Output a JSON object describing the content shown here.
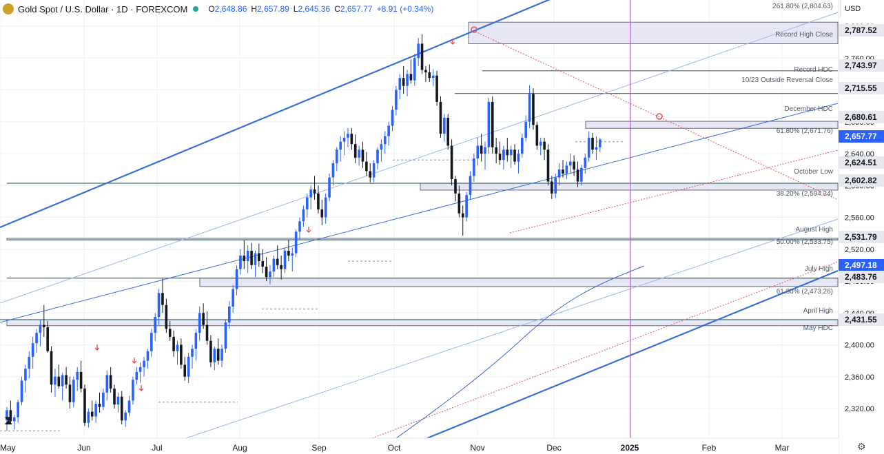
{
  "header": {
    "symbol": "Gold Spot / U.S. Dollar · 1D · FOREXCOM",
    "open_label": "O",
    "open": "2,648.86",
    "high_label": "H",
    "high": "2,657.89",
    "low_label": "L",
    "low": "2,645.36",
    "close_label": "C",
    "close": "2,657.77",
    "change": "+8.91 (+0.34%)"
  },
  "currency": "USD",
  "colors": {
    "up": "#2962ff",
    "down": "#131722",
    "channel": "#3a6fd8",
    "zone_fill": "#e6e6f5",
    "zone_border": "#6b6b78",
    "dashed_red": "#e0535b",
    "ma": "#3f62d4",
    "marker": "#e0535b",
    "vertical": "#c038e0",
    "label": "#555b66"
  },
  "chart_data": {
    "type": "candlestick",
    "title": "Gold Spot / U.S. Dollar",
    "interval": "1D",
    "ylim": [
      2290,
      2830
    ],
    "x_months": [
      "May",
      "Jun",
      "Jul",
      "Aug",
      "Sep",
      "Oct",
      "Nov",
      "Dec",
      "2025",
      "Feb",
      "Mar"
    ],
    "y_ticks": [
      "2,320.00",
      "2,360.00",
      "2,400.00",
      "2,440.00",
      "2,480.00",
      "2,520.00",
      "2,560.00",
      "2,600.00",
      "2,640.00",
      "2,680.00",
      "2,720.00",
      "2,760.00",
      "2,800.00"
    ],
    "last_price": "2,657.77",
    "ma_value": "2,497.18",
    "price_labels": [
      {
        "value": "2,787.52",
        "text": "Record High Close"
      },
      {
        "value": "2,743.97",
        "text": "Record HDC"
      },
      {
        "value": "2,715.55",
        "text": "10/23 Outside Reversal Close"
      },
      {
        "value": "2,680.61",
        "text": "December HDC"
      },
      {
        "value": "2,624.51",
        "text": ""
      },
      {
        "value": "2,602.82",
        "text": "October Low"
      },
      {
        "value": "2,531.79",
        "text": "August High"
      },
      {
        "value": "2,483.76",
        "text": "July High"
      },
      {
        "value": "2,431.55",
        "text": "April High"
      }
    ],
    "fib_labels": [
      {
        "value": 2804.63,
        "text": "261.80% (2,804.63)"
      },
      {
        "value": 2671.76,
        "text": "61.80% (2,671.76)"
      },
      {
        "value": 2594.24,
        "text": "38.20% (2,594.24)"
      },
      {
        "value": 2533.75,
        "text": "50.00% (2,533.75)"
      },
      {
        "value": 2473.26,
        "text": "61.80% (2,473.26)"
      },
      {
        "value": 2424.0,
        "text": "May HDC"
      }
    ],
    "zones": [
      {
        "from": 2778,
        "to": 2805
      },
      {
        "from": 2671.76,
        "to": 2680.61
      },
      {
        "from": 2594.24,
        "to": 2602.82
      },
      {
        "from": 2531.79,
        "to": 2533.75
      },
      {
        "from": 2473.26,
        "to": 2483.76
      },
      {
        "from": 2424.0,
        "to": 2431.55
      }
    ],
    "candles": [
      {
        "o": 2305,
        "h": 2322,
        "l": 2292,
        "c": 2318
      },
      {
        "o": 2318,
        "h": 2330,
        "l": 2300,
        "c": 2304
      },
      {
        "o": 2304,
        "h": 2312,
        "l": 2294,
        "c": 2309
      },
      {
        "o": 2309,
        "h": 2331,
        "l": 2302,
        "c": 2328
      },
      {
        "o": 2328,
        "h": 2360,
        "l": 2324,
        "c": 2355
      },
      {
        "o": 2355,
        "h": 2375,
        "l": 2340,
        "c": 2370
      },
      {
        "o": 2370,
        "h": 2392,
        "l": 2358,
        "c": 2385
      },
      {
        "o": 2385,
        "h": 2410,
        "l": 2370,
        "c": 2402
      },
      {
        "o": 2402,
        "h": 2420,
        "l": 2390,
        "c": 2415
      },
      {
        "o": 2415,
        "h": 2432,
        "l": 2398,
        "c": 2425
      },
      {
        "o": 2425,
        "h": 2450,
        "l": 2410,
        "c": 2422
      },
      {
        "o": 2422,
        "h": 2430,
        "l": 2390,
        "c": 2392
      },
      {
        "o": 2392,
        "h": 2398,
        "l": 2340,
        "c": 2350
      },
      {
        "o": 2350,
        "h": 2370,
        "l": 2335,
        "c": 2360
      },
      {
        "o": 2360,
        "h": 2375,
        "l": 2345,
        "c": 2348
      },
      {
        "o": 2348,
        "h": 2365,
        "l": 2330,
        "c": 2362
      },
      {
        "o": 2362,
        "h": 2372,
        "l": 2345,
        "c": 2350
      },
      {
        "o": 2350,
        "h": 2360,
        "l": 2320,
        "c": 2328
      },
      {
        "o": 2328,
        "h": 2360,
        "l": 2322,
        "c": 2356
      },
      {
        "o": 2356,
        "h": 2372,
        "l": 2342,
        "c": 2366
      },
      {
        "o": 2366,
        "h": 2380,
        "l": 2340,
        "c": 2345
      },
      {
        "o": 2345,
        "h": 2350,
        "l": 2298,
        "c": 2302
      },
      {
        "o": 2302,
        "h": 2320,
        "l": 2296,
        "c": 2316
      },
      {
        "o": 2316,
        "h": 2330,
        "l": 2305,
        "c": 2310
      },
      {
        "o": 2310,
        "h": 2330,
        "l": 2302,
        "c": 2326
      },
      {
        "o": 2326,
        "h": 2340,
        "l": 2315,
        "c": 2322
      },
      {
        "o": 2322,
        "h": 2345,
        "l": 2318,
        "c": 2340
      },
      {
        "o": 2340,
        "h": 2368,
        "l": 2330,
        "c": 2362
      },
      {
        "o": 2362,
        "h": 2372,
        "l": 2340,
        "c": 2345
      },
      {
        "o": 2345,
        "h": 2350,
        "l": 2320,
        "c": 2325
      },
      {
        "o": 2325,
        "h": 2340,
        "l": 2315,
        "c": 2335
      },
      {
        "o": 2335,
        "h": 2342,
        "l": 2300,
        "c": 2305
      },
      {
        "o": 2305,
        "h": 2318,
        "l": 2297,
        "c": 2315
      },
      {
        "o": 2315,
        "h": 2336,
        "l": 2310,
        "c": 2330
      },
      {
        "o": 2330,
        "h": 2360,
        "l": 2325,
        "c": 2356
      },
      {
        "o": 2356,
        "h": 2372,
        "l": 2350,
        "c": 2366
      },
      {
        "o": 2366,
        "h": 2378,
        "l": 2352,
        "c": 2372
      },
      {
        "o": 2372,
        "h": 2385,
        "l": 2360,
        "c": 2380
      },
      {
        "o": 2380,
        "h": 2395,
        "l": 2370,
        "c": 2392
      },
      {
        "o": 2392,
        "h": 2420,
        "l": 2385,
        "c": 2415
      },
      {
        "o": 2415,
        "h": 2440,
        "l": 2405,
        "c": 2435
      },
      {
        "o": 2435,
        "h": 2470,
        "l": 2425,
        "c": 2465
      },
      {
        "o": 2465,
        "h": 2483,
        "l": 2440,
        "c": 2450
      },
      {
        "o": 2450,
        "h": 2458,
        "l": 2415,
        "c": 2420
      },
      {
        "o": 2420,
        "h": 2430,
        "l": 2405,
        "c": 2410
      },
      {
        "o": 2410,
        "h": 2418,
        "l": 2385,
        "c": 2392
      },
      {
        "o": 2392,
        "h": 2405,
        "l": 2375,
        "c": 2400
      },
      {
        "o": 2400,
        "h": 2408,
        "l": 2370,
        "c": 2375
      },
      {
        "o": 2375,
        "h": 2385,
        "l": 2355,
        "c": 2360
      },
      {
        "o": 2360,
        "h": 2390,
        "l": 2352,
        "c": 2385
      },
      {
        "o": 2385,
        "h": 2400,
        "l": 2370,
        "c": 2395
      },
      {
        "o": 2395,
        "h": 2420,
        "l": 2380,
        "c": 2415
      },
      {
        "o": 2415,
        "h": 2448,
        "l": 2405,
        "c": 2440
      },
      {
        "o": 2440,
        "h": 2452,
        "l": 2420,
        "c": 2425
      },
      {
        "o": 2425,
        "h": 2442,
        "l": 2400,
        "c": 2405
      },
      {
        "o": 2405,
        "h": 2412,
        "l": 2372,
        "c": 2378
      },
      {
        "o": 2378,
        "h": 2398,
        "l": 2368,
        "c": 2395
      },
      {
        "o": 2395,
        "h": 2408,
        "l": 2375,
        "c": 2380
      },
      {
        "o": 2380,
        "h": 2400,
        "l": 2372,
        "c": 2395
      },
      {
        "o": 2395,
        "h": 2432,
        "l": 2390,
        "c": 2428
      },
      {
        "o": 2428,
        "h": 2455,
        "l": 2420,
        "c": 2448
      },
      {
        "o": 2448,
        "h": 2475,
        "l": 2440,
        "c": 2470
      },
      {
        "o": 2470,
        "h": 2500,
        "l": 2462,
        "c": 2495
      },
      {
        "o": 2495,
        "h": 2520,
        "l": 2488,
        "c": 2512
      },
      {
        "o": 2512,
        "h": 2531,
        "l": 2495,
        "c": 2505
      },
      {
        "o": 2505,
        "h": 2525,
        "l": 2490,
        "c": 2518
      },
      {
        "o": 2518,
        "h": 2528,
        "l": 2495,
        "c": 2500
      },
      {
        "o": 2500,
        "h": 2518,
        "l": 2485,
        "c": 2515
      },
      {
        "o": 2515,
        "h": 2527,
        "l": 2498,
        "c": 2505
      },
      {
        "o": 2505,
        "h": 2520,
        "l": 2490,
        "c": 2498
      },
      {
        "o": 2498,
        "h": 2510,
        "l": 2480,
        "c": 2485
      },
      {
        "o": 2485,
        "h": 2500,
        "l": 2476,
        "c": 2492
      },
      {
        "o": 2492,
        "h": 2512,
        "l": 2485,
        "c": 2508
      },
      {
        "o": 2508,
        "h": 2525,
        "l": 2495,
        "c": 2500
      },
      {
        "o": 2500,
        "h": 2512,
        "l": 2482,
        "c": 2495
      },
      {
        "o": 2495,
        "h": 2522,
        "l": 2490,
        "c": 2518
      },
      {
        "o": 2518,
        "h": 2532,
        "l": 2505,
        "c": 2512
      },
      {
        "o": 2512,
        "h": 2522,
        "l": 2492,
        "c": 2515
      },
      {
        "o": 2515,
        "h": 2545,
        "l": 2510,
        "c": 2542
      },
      {
        "o": 2542,
        "h": 2560,
        "l": 2532,
        "c": 2555
      },
      {
        "o": 2555,
        "h": 2575,
        "l": 2548,
        "c": 2570
      },
      {
        "o": 2570,
        "h": 2590,
        "l": 2560,
        "c": 2585
      },
      {
        "o": 2585,
        "h": 2600,
        "l": 2570,
        "c": 2595
      },
      {
        "o": 2595,
        "h": 2612,
        "l": 2582,
        "c": 2590
      },
      {
        "o": 2590,
        "h": 2600,
        "l": 2565,
        "c": 2570
      },
      {
        "o": 2570,
        "h": 2582,
        "l": 2550,
        "c": 2560
      },
      {
        "o": 2560,
        "h": 2590,
        "l": 2552,
        "c": 2585
      },
      {
        "o": 2585,
        "h": 2615,
        "l": 2580,
        "c": 2610
      },
      {
        "o": 2610,
        "h": 2632,
        "l": 2600,
        "c": 2628
      },
      {
        "o": 2628,
        "h": 2648,
        "l": 2618,
        "c": 2645
      },
      {
        "o": 2645,
        "h": 2662,
        "l": 2630,
        "c": 2655
      },
      {
        "o": 2655,
        "h": 2668,
        "l": 2638,
        "c": 2660
      },
      {
        "o": 2660,
        "h": 2672,
        "l": 2648,
        "c": 2665
      },
      {
        "o": 2665,
        "h": 2672,
        "l": 2645,
        "c": 2652
      },
      {
        "o": 2652,
        "h": 2664,
        "l": 2628,
        "c": 2635
      },
      {
        "o": 2635,
        "h": 2650,
        "l": 2625,
        "c": 2645
      },
      {
        "o": 2645,
        "h": 2655,
        "l": 2622,
        "c": 2630
      },
      {
        "o": 2630,
        "h": 2642,
        "l": 2612,
        "c": 2618
      },
      {
        "o": 2618,
        "h": 2628,
        "l": 2604,
        "c": 2610
      },
      {
        "o": 2610,
        "h": 2632,
        "l": 2604,
        "c": 2628
      },
      {
        "o": 2628,
        "h": 2648,
        "l": 2620,
        "c": 2645
      },
      {
        "o": 2645,
        "h": 2658,
        "l": 2630,
        "c": 2652
      },
      {
        "o": 2652,
        "h": 2668,
        "l": 2640,
        "c": 2662
      },
      {
        "o": 2662,
        "h": 2680,
        "l": 2650,
        "c": 2675
      },
      {
        "o": 2675,
        "h": 2700,
        "l": 2668,
        "c": 2695
      },
      {
        "o": 2695,
        "h": 2725,
        "l": 2688,
        "c": 2720
      },
      {
        "o": 2720,
        "h": 2740,
        "l": 2708,
        "c": 2735
      },
      {
        "o": 2735,
        "h": 2750,
        "l": 2715,
        "c": 2725
      },
      {
        "o": 2725,
        "h": 2745,
        "l": 2712,
        "c": 2740
      },
      {
        "o": 2740,
        "h": 2758,
        "l": 2728,
        "c": 2732
      },
      {
        "o": 2732,
        "h": 2765,
        "l": 2725,
        "c": 2760
      },
      {
        "o": 2760,
        "h": 2785,
        "l": 2750,
        "c": 2778
      },
      {
        "o": 2778,
        "h": 2790,
        "l": 2740,
        "c": 2745
      },
      {
        "o": 2745,
        "h": 2750,
        "l": 2730,
        "c": 2742
      },
      {
        "o": 2742,
        "h": 2752,
        "l": 2730,
        "c": 2735
      },
      {
        "o": 2735,
        "h": 2746,
        "l": 2725,
        "c": 2738
      },
      {
        "o": 2738,
        "h": 2744,
        "l": 2700,
        "c": 2705
      },
      {
        "o": 2705,
        "h": 2712,
        "l": 2660,
        "c": 2665
      },
      {
        "o": 2665,
        "h": 2690,
        "l": 2655,
        "c": 2685
      },
      {
        "o": 2685,
        "h": 2690,
        "l": 2645,
        "c": 2650
      },
      {
        "o": 2650,
        "h": 2658,
        "l": 2600,
        "c": 2608
      },
      {
        "o": 2608,
        "h": 2612,
        "l": 2580,
        "c": 2590
      },
      {
        "o": 2590,
        "h": 2600,
        "l": 2560,
        "c": 2565
      },
      {
        "o": 2565,
        "h": 2575,
        "l": 2537,
        "c": 2560
      },
      {
        "o": 2560,
        "h": 2592,
        "l": 2555,
        "c": 2588
      },
      {
        "o": 2588,
        "h": 2618,
        "l": 2582,
        "c": 2612
      },
      {
        "o": 2612,
        "h": 2640,
        "l": 2605,
        "c": 2634
      },
      {
        "o": 2634,
        "h": 2660,
        "l": 2625,
        "c": 2650
      },
      {
        "o": 2650,
        "h": 2665,
        "l": 2630,
        "c": 2640
      },
      {
        "o": 2640,
        "h": 2655,
        "l": 2620,
        "c": 2648
      },
      {
        "o": 2648,
        "h": 2710,
        "l": 2640,
        "c": 2705
      },
      {
        "o": 2705,
        "h": 2712,
        "l": 2640,
        "c": 2648
      },
      {
        "o": 2648,
        "h": 2660,
        "l": 2628,
        "c": 2640
      },
      {
        "o": 2640,
        "h": 2655,
        "l": 2626,
        "c": 2632
      },
      {
        "o": 2632,
        "h": 2650,
        "l": 2620,
        "c": 2645
      },
      {
        "o": 2645,
        "h": 2660,
        "l": 2630,
        "c": 2638
      },
      {
        "o": 2638,
        "h": 2650,
        "l": 2622,
        "c": 2645
      },
      {
        "o": 2645,
        "h": 2652,
        "l": 2626,
        "c": 2630
      },
      {
        "o": 2630,
        "h": 2645,
        "l": 2615,
        "c": 2640
      },
      {
        "o": 2640,
        "h": 2665,
        "l": 2635,
        "c": 2660
      },
      {
        "o": 2660,
        "h": 2688,
        "l": 2655,
        "c": 2680
      },
      {
        "o": 2680,
        "h": 2726,
        "l": 2672,
        "c": 2715
      },
      {
        "o": 2715,
        "h": 2722,
        "l": 2670,
        "c": 2676
      },
      {
        "o": 2676,
        "h": 2680,
        "l": 2645,
        "c": 2650
      },
      {
        "o": 2650,
        "h": 2660,
        "l": 2638,
        "c": 2655
      },
      {
        "o": 2655,
        "h": 2660,
        "l": 2632,
        "c": 2645
      },
      {
        "o": 2645,
        "h": 2652,
        "l": 2600,
        "c": 2605
      },
      {
        "o": 2605,
        "h": 2612,
        "l": 2583,
        "c": 2590
      },
      {
        "o": 2590,
        "h": 2615,
        "l": 2584,
        "c": 2610
      },
      {
        "o": 2610,
        "h": 2628,
        "l": 2600,
        "c": 2620
      },
      {
        "o": 2620,
        "h": 2632,
        "l": 2610,
        "c": 2615
      },
      {
        "o": 2615,
        "h": 2630,
        "l": 2608,
        "c": 2625
      },
      {
        "o": 2625,
        "h": 2640,
        "l": 2615,
        "c": 2630
      },
      {
        "o": 2630,
        "h": 2638,
        "l": 2612,
        "c": 2620
      },
      {
        "o": 2620,
        "h": 2630,
        "l": 2598,
        "c": 2605
      },
      {
        "o": 2605,
        "h": 2626,
        "l": 2600,
        "c": 2622
      },
      {
        "o": 2622,
        "h": 2640,
        "l": 2615,
        "c": 2635
      },
      {
        "o": 2635,
        "h": 2668,
        "l": 2630,
        "c": 2660
      },
      {
        "o": 2660,
        "h": 2666,
        "l": 2640,
        "c": 2645
      },
      {
        "o": 2645,
        "h": 2662,
        "l": 2632,
        "c": 2648
      },
      {
        "o": 2648,
        "h": 2660,
        "l": 2642,
        "c": 2657.77
      }
    ]
  }
}
